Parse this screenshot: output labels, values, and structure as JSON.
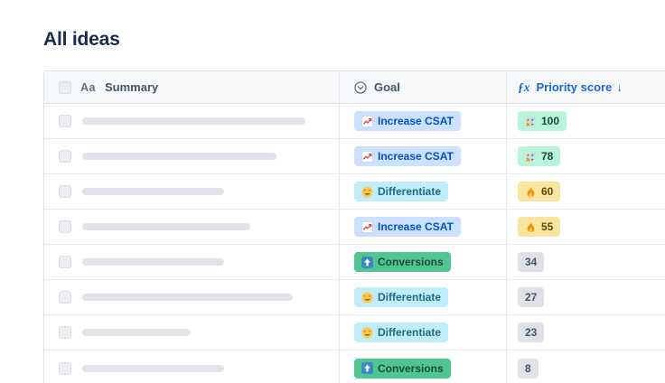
{
  "page": {
    "title": "All ideas"
  },
  "colors": {
    "accent_blue": "#1868db",
    "header_bg": "#f7f8fa",
    "border": "#dcdfe4",
    "goal_blue_bg": "#cce0ff",
    "goal_teal_bg": "#c1ecf9",
    "goal_green_bg": "#4fc690",
    "score_green_bg": "#baf3db",
    "score_yellow_bg": "#f8e6a0",
    "score_gray_bg": "#dfe1e6"
  },
  "table": {
    "header": {
      "summary": {
        "label": "Summary",
        "icon_glyph": "Aa",
        "icon": "text-field-icon"
      },
      "goal": {
        "label": "Goal",
        "icon": "select-field-icon"
      },
      "priority": {
        "label": "Priority score",
        "icon_glyph": "ƒx",
        "icon": "formula-icon",
        "sort_glyph": "↓",
        "sort": "desc"
      }
    },
    "rows": [
      {
        "summary_placeholder_width": 247,
        "goal": {
          "label": "Increase CSAT",
          "icon": "chart-increasing",
          "style": "blue"
        },
        "score": {
          "value": "100",
          "icon": "rocket",
          "style": "green"
        }
      },
      {
        "summary_placeholder_width": 215,
        "goal": {
          "label": "Increase CSAT",
          "icon": "chart-increasing",
          "style": "blue"
        },
        "score": {
          "value": "78",
          "icon": "rocket",
          "style": "green"
        }
      },
      {
        "summary_placeholder_width": 157,
        "goal": {
          "label": "Differentiate",
          "icon": "star-struck",
          "style": "teal"
        },
        "score": {
          "value": "60",
          "icon": "fire",
          "style": "yellow"
        }
      },
      {
        "summary_placeholder_width": 186,
        "goal": {
          "label": "Increase CSAT",
          "icon": "chart-increasing",
          "style": "blue"
        },
        "score": {
          "value": "55",
          "icon": "fire",
          "style": "yellow"
        }
      },
      {
        "summary_placeholder_width": 157,
        "goal": {
          "label": "Conversions",
          "icon": "up-arrow",
          "style": "green"
        },
        "score": {
          "value": "34",
          "icon": null,
          "style": "gray"
        }
      },
      {
        "summary_placeholder_width": 233,
        "goal": {
          "label": "Differentiate",
          "icon": "star-struck",
          "style": "teal"
        },
        "score": {
          "value": "27",
          "icon": null,
          "style": "gray"
        }
      },
      {
        "summary_placeholder_width": 120,
        "goal": {
          "label": "Differentiate",
          "icon": "star-struck",
          "style": "teal"
        },
        "score": {
          "value": "23",
          "icon": null,
          "style": "gray"
        }
      },
      {
        "summary_placeholder_width": 157,
        "goal": {
          "label": "Conversions",
          "icon": "up-arrow",
          "style": "green"
        },
        "score": {
          "value": "8",
          "icon": null,
          "style": "gray"
        }
      }
    ]
  }
}
